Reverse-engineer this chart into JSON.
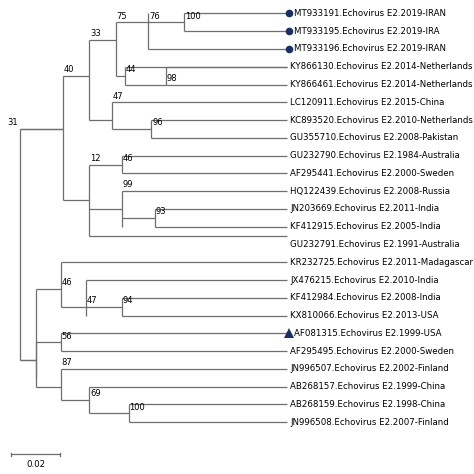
{
  "taxa": [
    {
      "name": "MT933191.Echovirus E2.2019-IRAN",
      "y": 1,
      "marker": "circle"
    },
    {
      "name": "MT933195.Echovirus E2.2019-IRA",
      "y": 2,
      "marker": "circle"
    },
    {
      "name": "MT933196.Echovirus E2.2019-IRAN",
      "y": 3,
      "marker": "circle"
    },
    {
      "name": "KY866130.Echovirus E2.2014-Netherlands",
      "y": 4,
      "marker": null
    },
    {
      "name": "KY866461.Echovirus E2.2014-Netherlands",
      "y": 5,
      "marker": null
    },
    {
      "name": "LC120911.Echovirus E2.2015-China",
      "y": 6,
      "marker": null
    },
    {
      "name": "KC893520.Echovirus E2.2010-Netherlands",
      "y": 7,
      "marker": null
    },
    {
      "name": "GU355710.Echovirus E2.2008-Pakistan",
      "y": 8,
      "marker": null
    },
    {
      "name": "GU232790.Echovirus E2.1984-Australia",
      "y": 9,
      "marker": null
    },
    {
      "name": "AF295441.Echovirus E2.2000-Sweden",
      "y": 10,
      "marker": null
    },
    {
      "name": "HQ122439.Echovirus E2.2008-Russia",
      "y": 11,
      "marker": null
    },
    {
      "name": "JN203669.Echovirus E2.2011-India",
      "y": 12,
      "marker": null
    },
    {
      "name": "KF412915.Echovirus E2.2005-India",
      "y": 13,
      "marker": null
    },
    {
      "name": "GU232791.Echovirus E2.1991-Australia",
      "y": 14,
      "marker": null
    },
    {
      "name": "KR232725.Echovirus E2.2011-Madagascar",
      "y": 15,
      "marker": null
    },
    {
      "name": "JX476215.Echovirus E2.2010-India",
      "y": 16,
      "marker": null
    },
    {
      "name": "KF412984.Echovirus E2.2008-India",
      "y": 17,
      "marker": null
    },
    {
      "name": "KX810066.Echovirus E2.2013-USA",
      "y": 18,
      "marker": null
    },
    {
      "name": "AF081315.Echovirus E2.1999-USA",
      "y": 19,
      "marker": "triangle"
    },
    {
      "name": "AF295495.Echovirus E2.2000-Sweden",
      "y": 20,
      "marker": null
    },
    {
      "name": "JN996507.Echovirus E2.2002-Finland",
      "y": 21,
      "marker": null
    },
    {
      "name": "AB268157.Echovirus E2.1999-China",
      "y": 22,
      "marker": null
    },
    {
      "name": "AB268159.Echovirus E2.1998-China",
      "y": 23,
      "marker": null
    },
    {
      "name": "JN996508.Echovirus E2.2007-Finland",
      "y": 24,
      "marker": null
    }
  ],
  "background_color": "#ffffff",
  "line_color": "#6e6e6e",
  "text_color": "#000000",
  "label_fontsize": 6.2,
  "bootstrap_fontsize": 6.0,
  "marker_color": "#1a3060"
}
